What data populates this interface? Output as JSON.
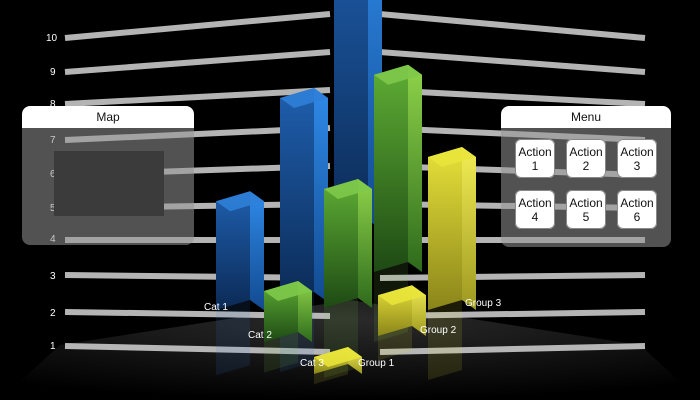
{
  "chart_data": {
    "type": "bar",
    "y_ticks": [
      "1",
      "2",
      "3",
      "4",
      "5",
      "6",
      "7",
      "8",
      "9",
      "10"
    ],
    "categories": [
      "Cat 1",
      "Cat 2",
      "Cat 3"
    ],
    "groups": [
      "Group 1",
      "Group 2",
      "Group 3"
    ],
    "series": [
      {
        "name": "Group 1",
        "values": [
          3.2,
          1.5,
          0.5
        ]
      },
      {
        "name": "Group 2",
        "values": [
          6.0,
          3.5,
          1.2
        ]
      },
      {
        "name": "Group 3",
        "values": [
          9.0,
          5.8,
          4.5
        ]
      }
    ],
    "colors": {
      "blue": "#2f7fd8",
      "green": "#7ec94a",
      "yellow": "#e9e43a"
    }
  },
  "map_panel": {
    "title": "Map"
  },
  "menu_panel": {
    "title": "Menu",
    "actions": [
      "Action\n1",
      "Action\n2",
      "Action\n3",
      "Action\n4",
      "Action\n5",
      "Action\n6"
    ]
  }
}
